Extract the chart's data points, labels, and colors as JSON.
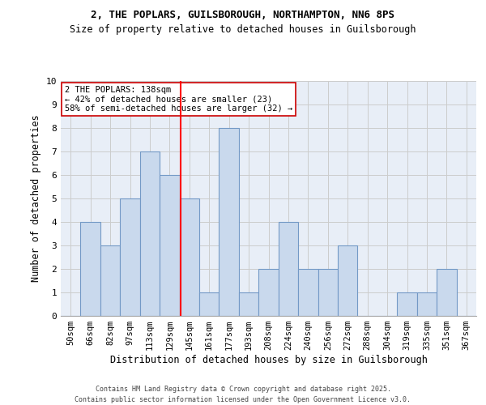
{
  "title_line1": "2, THE POPLARS, GUILSBOROUGH, NORTHAMPTON, NN6 8PS",
  "title_line2": "Size of property relative to detached houses in Guilsborough",
  "xlabel": "Distribution of detached houses by size in Guilsborough",
  "ylabel": "Number of detached properties",
  "bin_labels": [
    "50sqm",
    "66sqm",
    "82sqm",
    "97sqm",
    "113sqm",
    "129sqm",
    "145sqm",
    "161sqm",
    "177sqm",
    "193sqm",
    "208sqm",
    "224sqm",
    "240sqm",
    "256sqm",
    "272sqm",
    "288sqm",
    "304sqm",
    "319sqm",
    "335sqm",
    "351sqm",
    "367sqm"
  ],
  "bar_heights": [
    0,
    4,
    3,
    5,
    7,
    6,
    5,
    1,
    8,
    1,
    2,
    4,
    2,
    2,
    3,
    0,
    0,
    1,
    1,
    2,
    0
  ],
  "bar_color": "#c9d9ed",
  "bar_edge_color": "#7399c6",
  "grid_color": "#cccccc",
  "background_color": "#e8eef7",
  "annotation_text": "2 THE POPLARS: 138sqm\n← 42% of detached houses are smaller (23)\n58% of semi-detached houses are larger (32) →",
  "annotation_box_color": "#ffffff",
  "annotation_box_edge": "#cc0000",
  "footer_line1": "Contains HM Land Registry data © Crown copyright and database right 2025.",
  "footer_line2": "Contains public sector information licensed under the Open Government Licence v3.0.",
  "ylim": [
    0,
    10
  ],
  "yticks": [
    0,
    1,
    2,
    3,
    4,
    5,
    6,
    7,
    8,
    9,
    10
  ]
}
